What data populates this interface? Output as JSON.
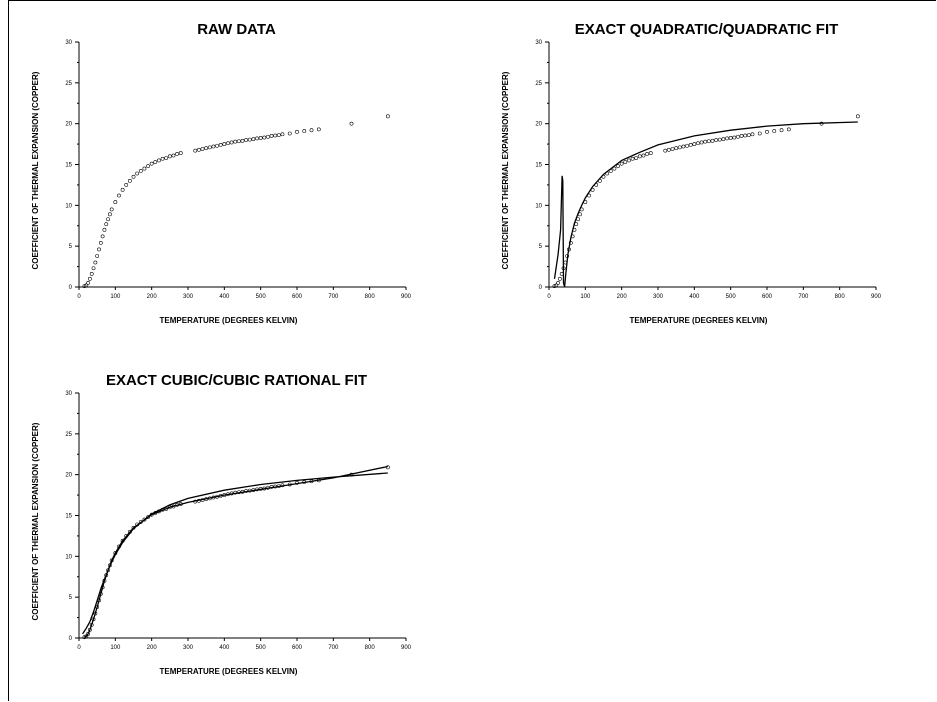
{
  "chart_data": [
    {
      "type": "scatter",
      "title": "RAW DATA",
      "xlabel": "TEMPERATURE (DEGREES KELVIN)",
      "ylabel": "COEFFICIENT OF THERMAL EXPANSION (COPPER)",
      "xlim": [
        0,
        900
      ],
      "ylim": [
        0,
        30
      ],
      "xticks": [
        "0",
        "100",
        "200",
        "300",
        "400",
        "500",
        "600",
        "700",
        "800",
        "900"
      ],
      "yticks": [
        "0",
        "5",
        "10",
        "15",
        "20",
        "25",
        "30"
      ],
      "series": [
        {
          "x": [
            15,
            20,
            25,
            30,
            35,
            40,
            45,
            50,
            55,
            60,
            65,
            70,
            75,
            80,
            85,
            90,
            100,
            110,
            120,
            130,
            140,
            150,
            160,
            170,
            180,
            190,
            200,
            210,
            220,
            230,
            240,
            250,
            260,
            270,
            280,
            320,
            330,
            340,
            350,
            360,
            370,
            380,
            390,
            400,
            410,
            420,
            430,
            440,
            450,
            460,
            470,
            480,
            490,
            500,
            510,
            520,
            530,
            540,
            550,
            560,
            580,
            600,
            620,
            640,
            660,
            750,
            850
          ],
          "y": [
            0.1,
            0.2,
            0.5,
            1.0,
            1.6,
            2.3,
            3.0,
            3.8,
            4.6,
            5.4,
            6.2,
            7.0,
            7.7,
            8.3,
            8.9,
            9.5,
            10.4,
            11.2,
            11.9,
            12.5,
            13.0,
            13.5,
            13.9,
            14.2,
            14.5,
            14.8,
            15.1,
            15.3,
            15.5,
            15.7,
            15.8,
            16.0,
            16.1,
            16.3,
            16.4,
            16.7,
            16.8,
            16.9,
            17.0,
            17.1,
            17.2,
            17.3,
            17.4,
            17.5,
            17.6,
            17.7,
            17.8,
            17.85,
            17.9,
            18.0,
            18.05,
            18.1,
            18.2,
            18.25,
            18.3,
            18.4,
            18.5,
            18.55,
            18.6,
            18.7,
            18.8,
            19.0,
            19.1,
            19.2,
            19.3,
            20.0,
            20.9
          ]
        }
      ]
    },
    {
      "type": "scatter",
      "title": "EXACT QUADRATIC/QUADRATIC FIT",
      "xlabel": "TEMPERATURE (DEGREES KELVIN)",
      "ylabel": "COEFFICIENT OF THERMAL EXPANSION (COPPER)",
      "xlim": [
        0,
        900
      ],
      "ylim": [
        0,
        30
      ],
      "xticks": [
        "0",
        "100",
        "200",
        "300",
        "400",
        "500",
        "600",
        "700",
        "800",
        "900"
      ],
      "yticks": [
        "0",
        "5",
        "10",
        "15",
        "20",
        "25",
        "30"
      ],
      "series": [
        {
          "x": [
            15,
            20,
            25,
            30,
            35,
            40,
            45,
            50,
            55,
            60,
            65,
            70,
            75,
            80,
            85,
            90,
            100,
            110,
            120,
            130,
            140,
            150,
            160,
            170,
            180,
            190,
            200,
            210,
            220,
            230,
            240,
            250,
            260,
            270,
            280,
            320,
            330,
            340,
            350,
            360,
            370,
            380,
            390,
            400,
            410,
            420,
            430,
            440,
            450,
            460,
            470,
            480,
            490,
            500,
            510,
            520,
            530,
            540,
            550,
            560,
            580,
            600,
            620,
            640,
            660,
            750,
            850
          ],
          "y": [
            0.1,
            0.2,
            0.5,
            1.0,
            1.6,
            2.3,
            3.0,
            3.8,
            4.6,
            5.4,
            6.2,
            7.0,
            7.7,
            8.3,
            8.9,
            9.5,
            10.4,
            11.2,
            11.9,
            12.5,
            13.0,
            13.5,
            13.9,
            14.2,
            14.5,
            14.8,
            15.1,
            15.3,
            15.5,
            15.7,
            15.8,
            16.0,
            16.1,
            16.3,
            16.4,
            16.7,
            16.8,
            16.9,
            17.0,
            17.1,
            17.2,
            17.3,
            17.4,
            17.5,
            17.6,
            17.7,
            17.8,
            17.85,
            17.9,
            18.0,
            18.05,
            18.1,
            18.2,
            18.25,
            18.3,
            18.4,
            18.5,
            18.55,
            18.6,
            18.7,
            18.8,
            19.0,
            19.1,
            19.2,
            19.3,
            20.0,
            20.9
          ]
        },
        {
          "type": "line",
          "x": [
            15,
            25,
            32,
            36,
            38,
            40,
            43,
            46,
            52,
            60,
            70,
            80,
            90,
            100,
            120,
            150,
            200,
            250,
            300,
            400,
            500,
            600,
            700,
            850
          ],
          "y": [
            1.0,
            4.0,
            7.0,
            13.6,
            13.0,
            0.5,
            0.0,
            1.5,
            4.0,
            6.0,
            7.8,
            9.0,
            10.0,
            10.9,
            12.3,
            13.8,
            15.5,
            16.5,
            17.4,
            18.5,
            19.2,
            19.7,
            20.0,
            20.2
          ]
        }
      ]
    },
    {
      "type": "scatter",
      "title": "EXACT CUBIC/CUBIC RATIONAL FIT",
      "xlabel": "TEMPERATURE (DEGREES KELVIN)",
      "ylabel": "COEFFICIENT OF THERMAL EXPANSION (COPPER)",
      "xlim": [
        0,
        900
      ],
      "ylim": [
        0,
        30
      ],
      "xticks": [
        "0",
        "100",
        "200",
        "300",
        "400",
        "500",
        "600",
        "700",
        "800",
        "900"
      ],
      "yticks": [
        "0",
        "5",
        "10",
        "15",
        "20",
        "25",
        "30"
      ],
      "series": [
        {
          "x": [
            15,
            20,
            25,
            30,
            35,
            40,
            45,
            50,
            55,
            60,
            65,
            70,
            75,
            80,
            85,
            90,
            100,
            110,
            120,
            130,
            140,
            150,
            160,
            170,
            180,
            190,
            200,
            210,
            220,
            230,
            240,
            250,
            260,
            270,
            280,
            320,
            330,
            340,
            350,
            360,
            370,
            380,
            390,
            400,
            410,
            420,
            430,
            440,
            450,
            460,
            470,
            480,
            490,
            500,
            510,
            520,
            530,
            540,
            550,
            560,
            580,
            600,
            620,
            640,
            660,
            750,
            850
          ],
          "y": [
            0.1,
            0.2,
            0.5,
            1.0,
            1.6,
            2.3,
            3.0,
            3.8,
            4.6,
            5.4,
            6.2,
            7.0,
            7.7,
            8.3,
            8.9,
            9.5,
            10.4,
            11.2,
            11.9,
            12.5,
            13.0,
            13.5,
            13.9,
            14.2,
            14.5,
            14.8,
            15.1,
            15.3,
            15.5,
            15.7,
            15.8,
            16.0,
            16.1,
            16.3,
            16.4,
            16.7,
            16.8,
            16.9,
            17.0,
            17.1,
            17.2,
            17.3,
            17.4,
            17.5,
            17.6,
            17.7,
            17.8,
            17.85,
            17.9,
            18.0,
            18.05,
            18.1,
            18.2,
            18.25,
            18.3,
            18.4,
            18.5,
            18.55,
            18.6,
            18.7,
            18.8,
            19.0,
            19.1,
            19.2,
            19.3,
            20.0,
            20.9
          ]
        },
        {
          "type": "line",
          "x": [
            10,
            20,
            30,
            40,
            50,
            60,
            70,
            80,
            90,
            100,
            120,
            150,
            200,
            250,
            300,
            400,
            500,
            600,
            700,
            850
          ],
          "y": [
            0.5,
            1.2,
            2.0,
            3.2,
            4.6,
            6.0,
            7.2,
            8.3,
            9.3,
            10.2,
            11.7,
            13.4,
            15.2,
            16.3,
            17.1,
            18.1,
            18.8,
            19.3,
            19.7,
            20.2
          ]
        },
        {
          "type": "line",
          "x": [
            15,
            20,
            25,
            30,
            40,
            50,
            60,
            70,
            80,
            90,
            100,
            120,
            150,
            200,
            250,
            300,
            400,
            500,
            600,
            700,
            850
          ],
          "y": [
            0.1,
            0.2,
            0.5,
            1.0,
            2.3,
            3.8,
            5.4,
            7.0,
            8.3,
            9.5,
            10.4,
            11.9,
            13.5,
            15.1,
            16.0,
            16.6,
            17.5,
            18.2,
            18.9,
            19.6,
            21.0
          ]
        }
      ]
    }
  ]
}
